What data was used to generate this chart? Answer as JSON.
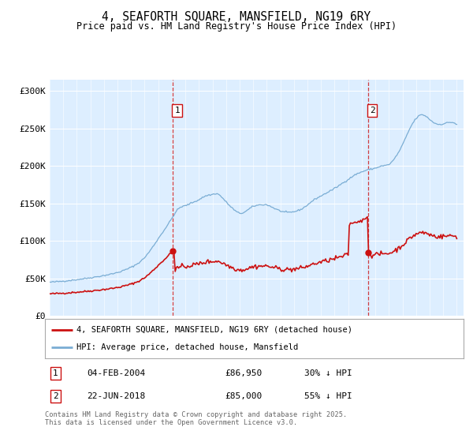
{
  "title": "4, SEAFORTH SQUARE, MANSFIELD, NG19 6RY",
  "subtitle": "Price paid vs. HM Land Registry's House Price Index (HPI)",
  "ylabel_ticks": [
    "£0",
    "£50K",
    "£100K",
    "£150K",
    "£200K",
    "£250K",
    "£300K"
  ],
  "ytick_values": [
    0,
    50000,
    100000,
    150000,
    200000,
    250000,
    300000
  ],
  "ylim": [
    0,
    315000
  ],
  "xlim_start": 1995.0,
  "xlim_end": 2025.5,
  "hpi_color": "#7aadd4",
  "price_color": "#cc1111",
  "bg_color": "#ddeeff",
  "ann1_x": 2004.09,
  "ann1_y": 86950,
  "ann2_x": 2018.47,
  "ann2_y": 85000,
  "annotation1": {
    "label": "1",
    "date": "04-FEB-2004",
    "price": "£86,950",
    "pct": "30% ↓ HPI"
  },
  "annotation2": {
    "label": "2",
    "date": "22-JUN-2018",
    "price": "£85,000",
    "pct": "55% ↓ HPI"
  },
  "legend_price": "4, SEAFORTH SQUARE, MANSFIELD, NG19 6RY (detached house)",
  "legend_hpi": "HPI: Average price, detached house, Mansfield",
  "footer": "Contains HM Land Registry data © Crown copyright and database right 2025.\nThis data is licensed under the Open Government Licence v3.0."
}
